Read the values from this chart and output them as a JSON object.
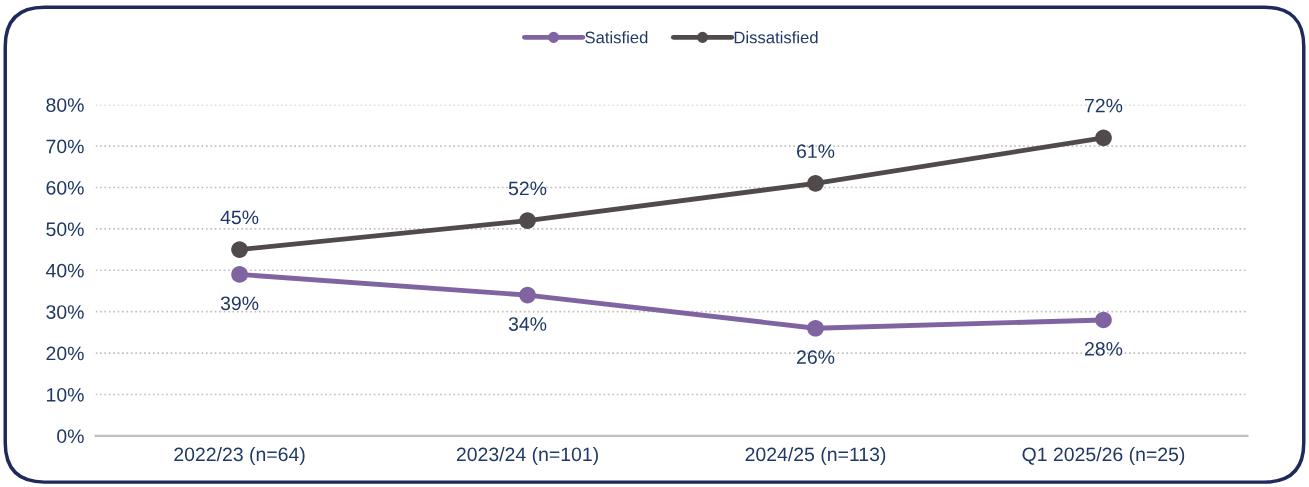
{
  "chart_data": {
    "type": "line",
    "categories": [
      "2022/23 (n=64)",
      "2023/24 (n=101)",
      "2024/25 (n=113)",
      "Q1 2025/26 (n=25)"
    ],
    "series": [
      {
        "name": "Satisfied",
        "color": "#8064a2",
        "values": [
          39,
          34,
          26,
          28
        ],
        "value_labels": [
          "39%",
          "34%",
          "26%",
          "28%"
        ]
      },
      {
        "name": "Dissatisfied",
        "color": "#504a4b",
        "values": [
          45,
          52,
          61,
          72
        ],
        "value_labels": [
          "45%",
          "52%",
          "61%",
          "72%"
        ]
      }
    ],
    "ylim": [
      0,
      80
    ],
    "yticks": [
      {
        "value": 0,
        "label": "0%"
      },
      {
        "value": 10,
        "label": "10%"
      },
      {
        "value": 20,
        "label": "20%"
      },
      {
        "value": 30,
        "label": "30%"
      },
      {
        "value": 40,
        "label": "40%"
      },
      {
        "value": 50,
        "label": "50%"
      },
      {
        "value": 60,
        "label": "60%"
      },
      {
        "value": 70,
        "label": "70%"
      },
      {
        "value": 80,
        "label": "80%"
      }
    ],
    "grid": "y",
    "legend": "top",
    "marker": "circle",
    "line_style": "solid"
  }
}
